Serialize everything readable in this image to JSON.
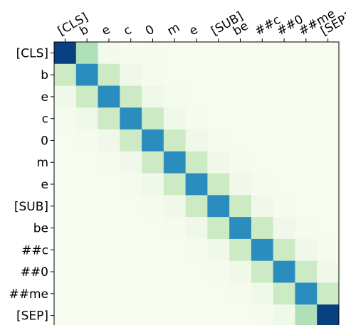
{
  "chart_data": {
    "type": "heatmap",
    "title": "",
    "xlabel": "",
    "ylabel": "",
    "x_tick_labels": [
      "[CLS]",
      "b",
      "e",
      "c",
      "0",
      "m",
      "e",
      "[SUB]",
      "be",
      "##c",
      "##0",
      "##me",
      "[SEP]"
    ],
    "y_tick_labels": [
      "[CLS]",
      "b",
      "e",
      "c",
      "0",
      "m",
      "e",
      "[SUB]",
      "be",
      "##c",
      "##0",
      "##me",
      "[SEP]"
    ],
    "colormap": "GnBu",
    "colormap_stops": [
      "#f7fcf0",
      "#e0f3db",
      "#ccebc5",
      "#a8ddb5",
      "#7bccc4",
      "#4eb3d3",
      "#2b8cbe",
      "#0868ac",
      "#084081"
    ],
    "vmin": 0,
    "vmax": 1,
    "values": [
      [
        1.0,
        0.35,
        0.03,
        0.01,
        0.01,
        0.0,
        0.0,
        0.0,
        0.0,
        0.0,
        0.0,
        0.0,
        0.0
      ],
      [
        0.25,
        0.75,
        0.25,
        0.04,
        0.01,
        0.0,
        0.0,
        0.0,
        0.0,
        0.0,
        0.0,
        0.0,
        0.0
      ],
      [
        0.04,
        0.25,
        0.75,
        0.25,
        0.04,
        0.01,
        0.0,
        0.0,
        0.0,
        0.0,
        0.0,
        0.0,
        0.0
      ],
      [
        0.01,
        0.04,
        0.25,
        0.75,
        0.25,
        0.04,
        0.01,
        0.0,
        0.0,
        0.0,
        0.0,
        0.0,
        0.0
      ],
      [
        0.0,
        0.01,
        0.04,
        0.25,
        0.75,
        0.25,
        0.04,
        0.01,
        0.0,
        0.0,
        0.0,
        0.0,
        0.0
      ],
      [
        0.0,
        0.0,
        0.01,
        0.04,
        0.25,
        0.75,
        0.25,
        0.04,
        0.01,
        0.0,
        0.0,
        0.0,
        0.0
      ],
      [
        0.0,
        0.0,
        0.0,
        0.01,
        0.04,
        0.25,
        0.75,
        0.25,
        0.04,
        0.01,
        0.0,
        0.0,
        0.0
      ],
      [
        0.0,
        0.0,
        0.0,
        0.0,
        0.01,
        0.04,
        0.25,
        0.75,
        0.25,
        0.04,
        0.01,
        0.0,
        0.0
      ],
      [
        0.0,
        0.0,
        0.0,
        0.0,
        0.0,
        0.01,
        0.04,
        0.25,
        0.75,
        0.25,
        0.04,
        0.01,
        0.0
      ],
      [
        0.0,
        0.0,
        0.0,
        0.0,
        0.0,
        0.0,
        0.01,
        0.04,
        0.25,
        0.75,
        0.25,
        0.04,
        0.01
      ],
      [
        0.0,
        0.0,
        0.0,
        0.0,
        0.0,
        0.0,
        0.0,
        0.01,
        0.04,
        0.25,
        0.75,
        0.25,
        0.04
      ],
      [
        0.0,
        0.0,
        0.0,
        0.0,
        0.0,
        0.0,
        0.0,
        0.0,
        0.01,
        0.04,
        0.25,
        0.75,
        0.25
      ],
      [
        0.0,
        0.0,
        0.0,
        0.0,
        0.0,
        0.0,
        0.0,
        0.0,
        0.0,
        0.01,
        0.04,
        0.35,
        1.0
      ]
    ],
    "grid": false,
    "legend": "none"
  }
}
